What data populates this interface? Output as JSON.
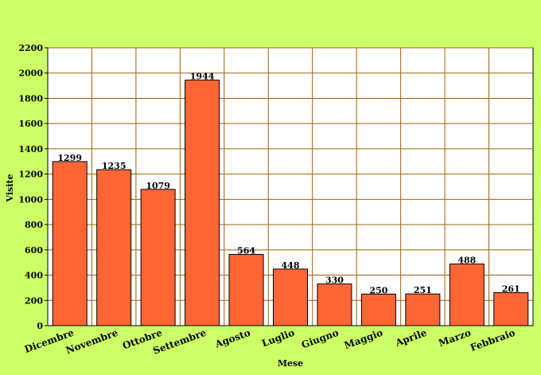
{
  "chart_data": {
    "type": "bar",
    "title": "",
    "xlabel": "Mese",
    "ylabel": "Visite",
    "ylim": [
      0,
      2200
    ],
    "yticks": [
      0,
      200,
      400,
      600,
      800,
      1000,
      1200,
      1400,
      1600,
      1800,
      2000,
      2200
    ],
    "grid": true,
    "categories": [
      "Dicembre",
      "Novembre",
      "Ottobre",
      "Settembre",
      "Agosto",
      "Luglio",
      "Giugno",
      "Maggio",
      "Aprile",
      "Marzo",
      "Febbraio"
    ],
    "values": [
      1299,
      1235,
      1079,
      1944,
      564,
      448,
      330,
      250,
      251,
      488,
      261
    ],
    "colors": {
      "background": "#ccff66",
      "plot_background": "#ffffff",
      "grid": "#a0600a",
      "bar_fill": "#ff6633",
      "bar_stroke": "#000000"
    }
  }
}
